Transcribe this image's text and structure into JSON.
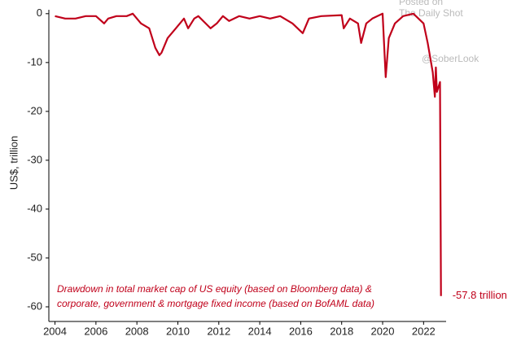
{
  "chart_data": {
    "type": "line",
    "y_label": "US$, trillion",
    "annotation": [
      "Drawdown in total market cap of US equity (based on Bloomberg data) &",
      "corporate, government & mortgage fixed income (based on BofAML data)"
    ],
    "watermarks": [
      "Posted on",
      "The Daily Shot",
      "@SoberLook"
    ],
    "color": "#c0001a",
    "x": [
      2004,
      2004.5,
      2005,
      2005.5,
      2006,
      2006.4,
      2006.6,
      2007,
      2007.5,
      2007.8,
      2008.2,
      2008.6,
      2008.9,
      2009.1,
      2009.2,
      2009.5,
      2009.9,
      2010.3,
      2010.5,
      2010.8,
      2011,
      2011.6,
      2011.9,
      2012.2,
      2012.5,
      2013,
      2013.5,
      2014,
      2014.5,
      2015,
      2015.6,
      2016.1,
      2016.4,
      2017,
      2018,
      2018.1,
      2018.4,
      2018.8,
      2018.95,
      2019.2,
      2019.5,
      2020,
      2020.15,
      2020.3,
      2020.6,
      2021,
      2021.5,
      2022,
      2022.2,
      2022.45,
      2022.55,
      2022.6,
      2022.65,
      2022.8,
      2022.85
    ],
    "values": [
      -0.5,
      -1,
      -1,
      -0.5,
      -0.5,
      -2,
      -1,
      -0.5,
      -0.5,
      0,
      -2,
      -3,
      -7,
      -8.5,
      -8,
      -5,
      -3,
      -1,
      -3,
      -1,
      -0.5,
      -3,
      -2,
      -0.5,
      -1.5,
      -0.5,
      -1,
      -0.5,
      -1,
      -0.5,
      -2,
      -4,
      -1,
      -0.5,
      -0.3,
      -3,
      -1,
      -2,
      -6,
      -2,
      -1,
      0,
      -13,
      -5,
      -2,
      -0.5,
      0,
      -2,
      -6,
      -12,
      -17,
      -11,
      -16,
      -14,
      -57.8
    ],
    "value_labels": [
      null,
      null,
      null,
      null,
      null,
      null,
      null,
      null,
      null,
      null,
      null,
      null,
      null,
      null,
      null,
      null,
      null,
      null,
      null,
      null,
      null,
      null,
      null,
      null,
      null,
      null,
      null,
      null,
      null,
      null,
      null,
      null,
      null,
      null,
      null,
      null,
      null,
      null,
      null,
      null,
      null,
      null,
      null,
      null,
      null,
      null,
      null,
      null,
      null,
      null,
      null,
      null,
      null,
      null,
      "-57.8 trillion"
    ],
    "xlim": [
      2003.7,
      2023.1
    ],
    "ylim": [
      -63,
      0.8
    ],
    "xticks": [
      2004,
      2006,
      2008,
      2010,
      2012,
      2014,
      2016,
      2018,
      2020,
      2022
    ],
    "yticks": [
      0,
      -10,
      -20,
      -30,
      -40,
      -50,
      -60
    ],
    "grid": false
  }
}
